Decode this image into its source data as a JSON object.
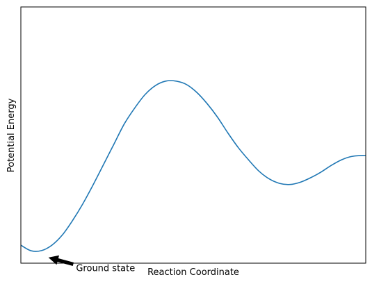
{
  "chart_data": {
    "type": "line",
    "title": "",
    "xlabel": "Reaction Coordinate",
    "ylabel": "Potential Energy",
    "xlim": [
      0,
      10
    ],
    "ylim": [
      -0.3,
      11.1
    ],
    "ticks": "none",
    "grid": false,
    "series": [
      {
        "color": "#1f77b4",
        "x": [
          0,
          0.3,
          0.6,
          0.9,
          1.2,
          1.5,
          1.8,
          2.1,
          2.4,
          2.7,
          3.0,
          3.3,
          3.6,
          3.9,
          4.2,
          4.5,
          4.8,
          5.1,
          5.4,
          5.7,
          6.0,
          6.3,
          6.6,
          6.9,
          7.2,
          7.5,
          7.8,
          8.1,
          8.4,
          8.7,
          9.0,
          9.3,
          9.6,
          10.0
        ],
        "y": [
          0.5,
          0.25,
          0.26,
          0.5,
          0.95,
          1.6,
          2.35,
          3.2,
          4.1,
          5.0,
          5.9,
          6.6,
          7.2,
          7.6,
          7.8,
          7.8,
          7.65,
          7.3,
          6.8,
          6.2,
          5.5,
          4.85,
          4.3,
          3.8,
          3.45,
          3.25,
          3.2,
          3.3,
          3.5,
          3.75,
          4.05,
          4.3,
          4.45,
          4.5
        ]
      }
    ],
    "annotations": [
      {
        "text": "Ground state",
        "point_x": 0.8,
        "point_y": -0.05,
        "text_x": 1.6,
        "text_y": -0.5,
        "arrow_color": "#000000"
      }
    ]
  }
}
